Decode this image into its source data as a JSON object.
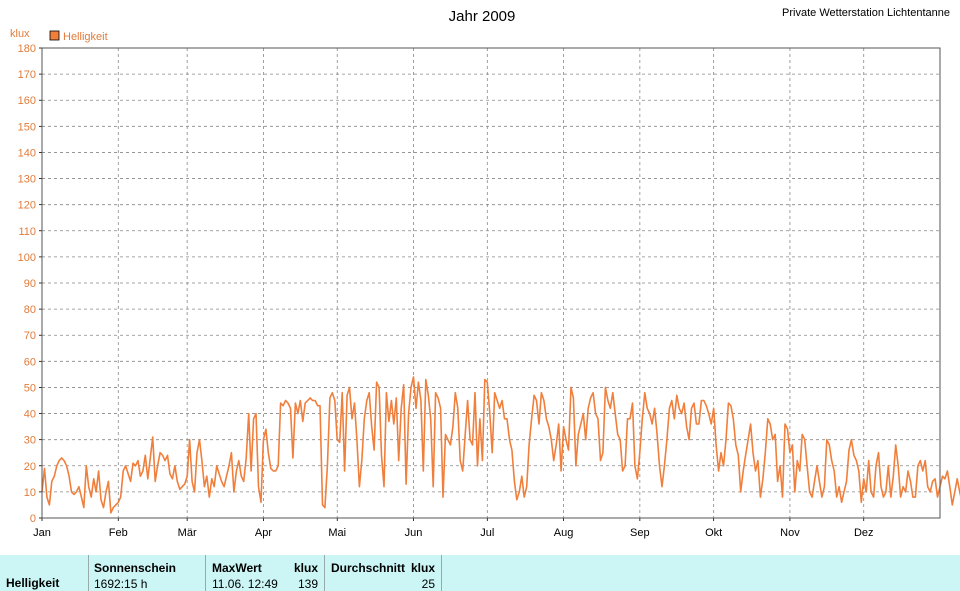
{
  "header": {
    "title": "Jahr 2009",
    "station": "Private Wetterstation Lichtentanne"
  },
  "colors": {
    "series": "#f07f3c",
    "axis_text": "#e07b39",
    "grid": "#888888",
    "stats_bg": "#ccf5f5"
  },
  "chart_data": {
    "type": "line",
    "ylabel": "klux",
    "ylim": [
      0,
      180
    ],
    "yticks": [
      0,
      10,
      20,
      30,
      40,
      50,
      60,
      70,
      80,
      90,
      100,
      110,
      120,
      130,
      140,
      150,
      160,
      170,
      180
    ],
    "xlim": [
      1,
      366
    ],
    "months": [
      {
        "label": "Jan",
        "day": 1
      },
      {
        "label": "Feb",
        "day": 32
      },
      {
        "label": "Mär",
        "day": 60
      },
      {
        "label": "Apr",
        "day": 91
      },
      {
        "label": "Mai",
        "day": 121
      },
      {
        "label": "Jun",
        "day": 152
      },
      {
        "label": "Jul",
        "day": 182
      },
      {
        "label": "Aug",
        "day": 213
      },
      {
        "label": "Sep",
        "day": 244
      },
      {
        "label": "Okt",
        "day": 274
      },
      {
        "label": "Nov",
        "day": 305
      },
      {
        "label": "Dez",
        "day": 335
      }
    ],
    "grid": true,
    "legend_position": "top-left",
    "series": [
      {
        "name": "Helligkeit",
        "values": [
          10,
          19,
          8,
          5,
          14,
          16,
          20,
          22,
          23,
          22,
          20,
          16,
          10,
          9,
          10,
          12,
          8,
          4,
          20,
          12,
          8,
          15,
          10,
          18,
          7,
          4,
          10,
          14,
          2,
          4,
          5,
          6,
          8,
          18,
          20,
          17,
          14,
          21,
          20,
          22,
          16,
          18,
          24,
          15,
          23,
          31,
          14,
          20,
          25,
          24,
          22,
          24,
          17,
          15,
          20,
          14,
          11,
          12,
          13,
          16,
          30,
          14,
          10,
          25,
          30,
          22,
          12,
          16,
          8,
          15,
          12,
          20,
          17,
          14,
          12,
          16,
          20,
          25,
          10,
          18,
          22,
          16,
          14,
          23,
          40,
          18,
          38,
          40,
          12,
          6,
          30,
          34,
          25,
          19,
          18,
          18,
          20,
          44,
          43,
          45,
          44,
          42,
          23,
          44,
          40,
          45,
          37,
          44,
          45,
          46,
          45,
          45,
          43,
          43,
          5,
          4,
          20,
          46,
          48,
          45,
          30,
          29,
          48,
          18,
          47,
          50,
          38,
          44,
          30,
          12,
          22,
          38,
          45,
          48,
          35,
          26,
          52,
          50,
          24,
          12,
          48,
          37,
          45,
          36,
          46,
          22,
          42,
          51,
          13,
          40,
          50,
          54,
          42,
          52,
          45,
          18,
          53,
          47,
          38,
          12,
          48,
          46,
          42,
          8,
          32,
          30,
          28,
          35,
          48,
          42,
          22,
          18,
          32,
          45,
          30,
          28,
          48,
          20,
          38,
          22,
          53,
          52,
          40,
          25,
          48,
          45,
          42,
          45,
          38,
          38,
          30,
          26,
          14,
          7,
          10,
          16,
          8,
          12,
          28,
          38,
          47,
          45,
          36,
          48,
          45,
          38,
          35,
          30,
          22,
          28,
          36,
          18,
          35,
          30,
          26,
          50,
          46,
          20,
          32,
          36,
          40,
          30,
          42,
          46,
          48,
          40,
          38,
          22,
          25,
          50,
          45,
          42,
          48,
          40,
          32,
          30,
          18,
          20,
          38,
          38,
          44,
          20,
          15,
          25,
          38,
          48,
          42,
          40,
          36,
          42,
          32,
          20,
          12,
          20,
          30,
          42,
          45,
          38,
          47,
          42,
          40,
          44,
          35,
          30,
          42,
          44,
          36,
          36,
          45,
          45,
          43,
          40,
          36,
          42,
          28,
          18,
          25,
          20,
          30,
          44,
          43,
          38,
          28,
          24,
          10,
          18,
          24,
          30,
          36,
          25,
          18,
          22,
          8,
          15,
          25,
          38,
          36,
          30,
          32,
          14,
          20,
          8,
          36,
          34,
          25,
          28,
          10,
          22,
          18,
          32,
          30,
          20,
          10,
          8,
          14,
          20,
          14,
          8,
          12,
          30,
          28,
          22,
          18,
          8,
          12,
          6,
          10,
          14,
          26,
          30,
          24,
          22,
          18,
          6,
          15,
          10,
          22,
          10,
          8,
          20,
          25,
          12,
          8,
          10,
          20,
          8,
          16,
          28,
          20,
          8,
          12,
          10,
          18,
          14,
          8,
          8,
          20,
          22,
          18,
          22,
          12,
          10,
          14,
          15,
          8,
          12,
          16,
          15,
          18,
          12,
          5,
          10,
          15,
          10,
          6,
          8,
          3,
          12,
          8,
          18,
          16,
          12,
          8,
          10,
          14,
          10,
          4,
          2,
          5,
          8,
          10,
          12,
          15,
          18,
          12,
          8,
          14,
          10,
          10,
          14,
          10,
          12,
          8,
          16,
          14,
          10,
          8,
          14,
          6
        ]
      }
    ]
  },
  "stats": {
    "row_label": "Helligkeit",
    "sonnenschein_header": "Sonnenschein",
    "sonnenschein_value": "1692:15 h",
    "maxwert_header": "MaxWert",
    "maxwert_unit": "klux",
    "maxwert_datetime": "11.06.  12:49",
    "maxwert_value": "139",
    "durchschnitt_header": "Durchschnitt",
    "durchschnitt_unit": "klux",
    "durchschnitt_value": "25"
  }
}
